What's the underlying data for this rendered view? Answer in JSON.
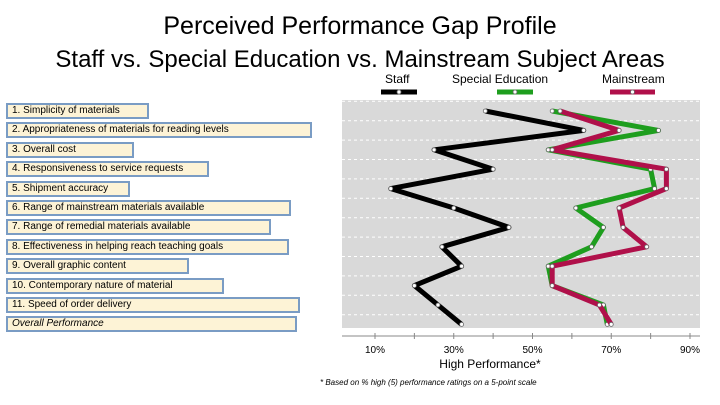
{
  "chart_data": {
    "type": "line",
    "title": "Perceived Performance Gap Profile",
    "subtitle": "Staff vs. Special Education vs. Mainstream Subject Areas",
    "xlabel": "High Performance*",
    "footnote": "* Based on % high (5) performance ratings on a 5-point scale",
    "xlim": [
      0,
      90
    ],
    "xticks": [
      "10%",
      "30%",
      "50%",
      "70%",
      "90%"
    ],
    "categories": [
      "1. Simplicity of materials",
      "2. Appropriateness of materials for reading levels",
      "3. Overall cost",
      "4. Responsiveness to service requests",
      "5. Shipment accuracy",
      "6. Range of mainstream materials available",
      "7. Range of remedial materials available",
      "8. Effectiveness in helping reach teaching goals",
      "9. Overall graphic content",
      "10. Contemporary nature of material",
      "11. Speed of order delivery",
      "Overall Performance"
    ],
    "series": [
      {
        "name": "Staff",
        "color": "#000000",
        "values": [
          38,
          63,
          25,
          40,
          14,
          30,
          44,
          27,
          32,
          20,
          26,
          32
        ]
      },
      {
        "name": "Special Education",
        "color": "#1e9e1e",
        "values": [
          55,
          82,
          54,
          80,
          81,
          61,
          68,
          65,
          54,
          55,
          68,
          69
        ]
      },
      {
        "name": "Mainstream",
        "color": "#b0104a",
        "values": [
          57,
          72,
          55,
          84,
          84,
          72,
          73,
          79,
          55,
          55,
          67,
          70
        ]
      }
    ]
  }
}
